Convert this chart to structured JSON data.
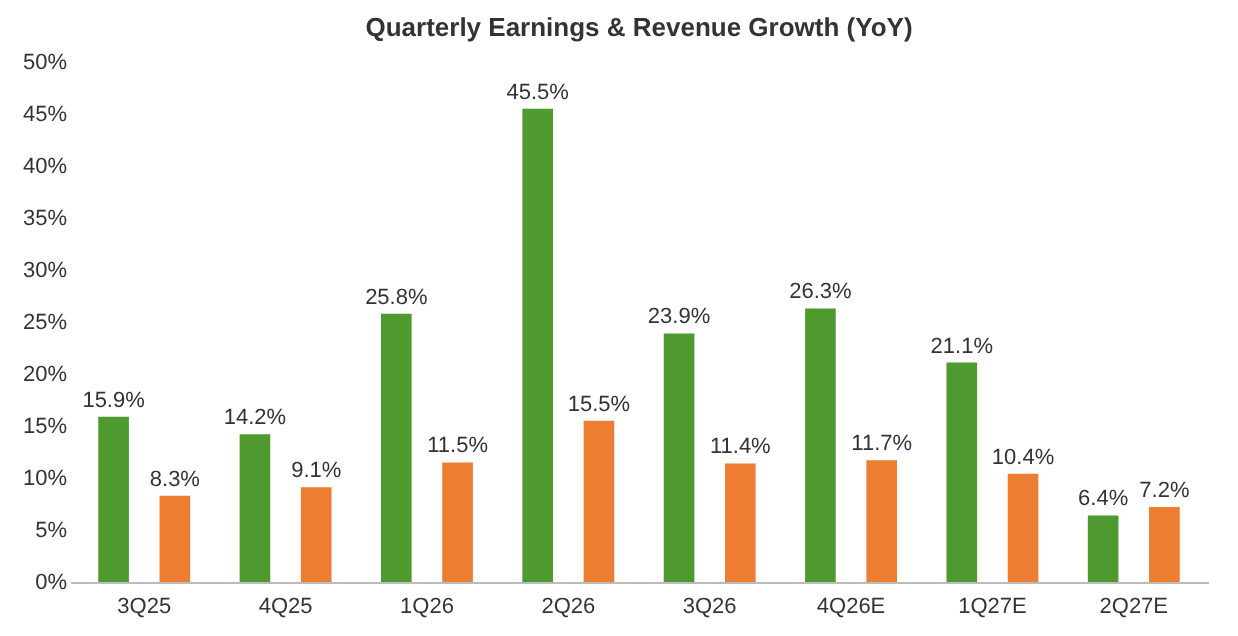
{
  "chart_data": {
    "type": "bar",
    "title": "Quarterly Earnings & Revenue Growth (YoY)",
    "categories": [
      "3Q25",
      "4Q25",
      "1Q26",
      "2Q26",
      "3Q26",
      "4Q26E",
      "1Q27E",
      "2Q27E"
    ],
    "series": [
      {
        "color": "#4e9a2f",
        "values": [
          15.9,
          14.2,
          25.8,
          45.5,
          23.9,
          26.3,
          21.1,
          6.4
        ],
        "value_labels": [
          "15.9%",
          "14.2%",
          "25.8%",
          "45.5%",
          "23.9%",
          "26.3%",
          "21.1%",
          "6.4%"
        ]
      },
      {
        "color": "#ed7d31",
        "values": [
          8.3,
          9.1,
          11.5,
          15.5,
          11.4,
          11.7,
          10.4,
          7.2
        ],
        "value_labels": [
          "8.3%",
          "9.1%",
          "11.5%",
          "15.5%",
          "11.4%",
          "11.7%",
          "10.4%",
          "7.2%"
        ]
      }
    ],
    "ylim": [
      0,
      50
    ],
    "yticks": [
      {
        "value": 0,
        "label": "0%"
      },
      {
        "value": 5,
        "label": "5%"
      },
      {
        "value": 10,
        "label": "10%"
      },
      {
        "value": 15,
        "label": "15%"
      },
      {
        "value": 20,
        "label": "20%"
      },
      {
        "value": 25,
        "label": "25%"
      },
      {
        "value": 30,
        "label": "30%"
      },
      {
        "value": 35,
        "label": "35%"
      },
      {
        "value": 40,
        "label": "40%"
      },
      {
        "value": 45,
        "label": "45%"
      },
      {
        "value": 50,
        "label": "50%"
      }
    ],
    "grid": false,
    "legend": false
  }
}
